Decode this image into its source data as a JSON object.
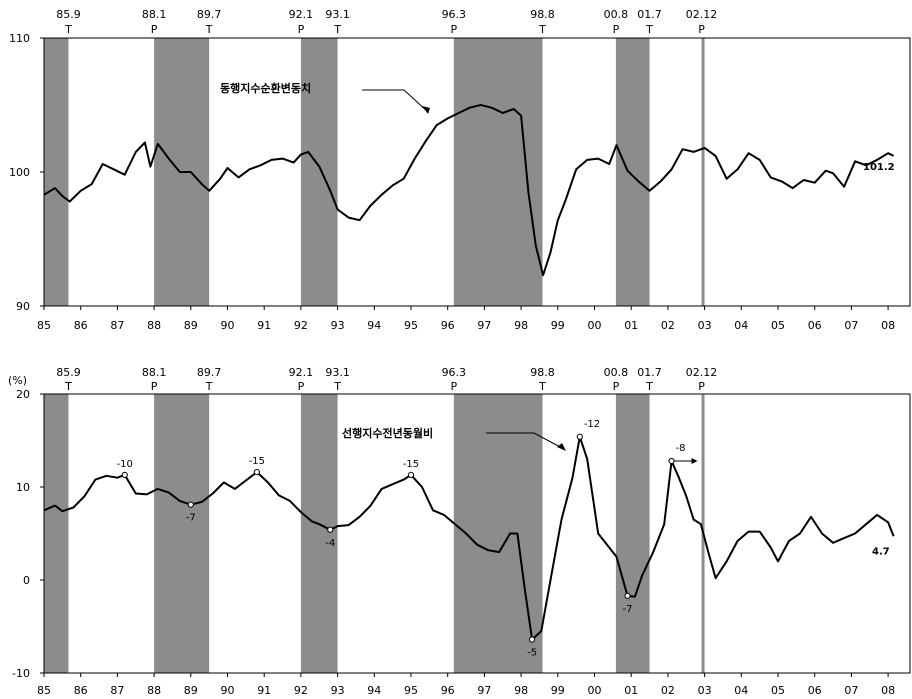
{
  "colors": {
    "shade": "#8c8c8c",
    "line": "#000000",
    "frame": "#000000",
    "marker_fill": "#ffffff"
  },
  "chart_data": [
    {
      "type": "line",
      "title": "",
      "ylim": [
        90,
        110
      ],
      "yticks": [
        "90",
        "100",
        "110"
      ],
      "xlim": [
        1985,
        2008.5
      ],
      "xticks": [
        "85",
        "86",
        "87",
        "88",
        "89",
        "90",
        "91",
        "92",
        "93",
        "94",
        "95",
        "96",
        "97",
        "98",
        "99",
        "00",
        "01",
        "02",
        "03",
        "04",
        "05",
        "06",
        "07",
        "08"
      ],
      "grid": false,
      "turning_points": [
        {
          "date": "85.9",
          "type": "T"
        },
        {
          "date": "88.1",
          "type": "P"
        },
        {
          "date": "89.7",
          "type": "T"
        },
        {
          "date": "92.1",
          "type": "P"
        },
        {
          "date": "93.1",
          "type": "T"
        },
        {
          "date": "96.3",
          "type": "P"
        },
        {
          "date": "98.8",
          "type": "T"
        },
        {
          "date": "00.8",
          "type": "P"
        },
        {
          "date": "01.7",
          "type": "T"
        },
        {
          "date": "02.12",
          "type": "P"
        }
      ],
      "series": [
        {
          "name": "동행지수순환변동치",
          "end_label": "101.2",
          "x": [
            1985.0,
            1985.3,
            1985.5,
            1985.7,
            1986.0,
            1986.3,
            1986.6,
            1986.9,
            1987.2,
            1987.5,
            1987.75,
            1987.9,
            1988.1,
            1988.4,
            1988.7,
            1989.0,
            1989.3,
            1989.5,
            1989.8,
            1990.0,
            1990.3,
            1990.6,
            1990.9,
            1991.2,
            1991.5,
            1991.8,
            1992.0,
            1992.2,
            1992.5,
            1992.8,
            1993.0,
            1993.3,
            1993.6,
            1993.9,
            1994.2,
            1994.5,
            1994.8,
            1995.1,
            1995.4,
            1995.7,
            1996.0,
            1996.3,
            1996.6,
            1996.9,
            1997.2,
            1997.5,
            1997.8,
            1998.0,
            1998.2,
            1998.4,
            1998.6,
            1998.8,
            1999.0,
            1999.2,
            1999.5,
            1999.8,
            2000.1,
            2000.4,
            2000.6,
            2000.9,
            2001.2,
            2001.5,
            2001.8,
            2002.1,
            2002.4,
            2002.7,
            2003.0,
            2003.3,
            2003.6,
            2003.9,
            2004.2,
            2004.5,
            2004.8,
            2005.1,
            2005.4,
            2005.7,
            2006.0,
            2006.3,
            2006.5,
            2006.8,
            2007.1,
            2007.4,
            2007.7,
            2008.0,
            2008.15
          ],
          "y": [
            98.3,
            98.8,
            98.2,
            97.8,
            98.6,
            99.1,
            100.6,
            100.2,
            99.8,
            101.5,
            102.2,
            100.4,
            102.1,
            101.0,
            100.0,
            100.0,
            99.1,
            98.6,
            99.5,
            100.3,
            99.6,
            100.2,
            100.5,
            100.9,
            101.0,
            100.7,
            101.3,
            101.5,
            100.4,
            98.6,
            97.2,
            96.6,
            96.4,
            97.5,
            98.3,
            99.0,
            99.5,
            101.0,
            102.3,
            103.5,
            104.0,
            104.4,
            104.8,
            105.0,
            104.8,
            104.4,
            104.7,
            104.2,
            98.5,
            94.5,
            92.3,
            94.0,
            96.4,
            97.8,
            100.2,
            100.9,
            101.0,
            100.6,
            102.0,
            100.1,
            99.3,
            98.6,
            99.3,
            100.2,
            101.7,
            101.5,
            101.8,
            101.2,
            99.5,
            100.2,
            101.4,
            100.9,
            99.6,
            99.3,
            98.8,
            99.4,
            99.2,
            100.1,
            99.9,
            98.9,
            100.8,
            100.5,
            100.9,
            101.4,
            101.2
          ]
        }
      ]
    },
    {
      "type": "line",
      "title": "",
      "yunit": "(%)",
      "ylim": [
        -10,
        20
      ],
      "yticks": [
        "-10",
        "0",
        "10",
        "20"
      ],
      "xlim": [
        1985,
        2008.5
      ],
      "xticks": [
        "85",
        "86",
        "87",
        "88",
        "89",
        "90",
        "91",
        "92",
        "93",
        "94",
        "95",
        "96",
        "97",
        "98",
        "99",
        "00",
        "01",
        "02",
        "03",
        "04",
        "05",
        "06",
        "07",
        "08"
      ],
      "grid": false,
      "turning_points": [
        {
          "date": "85.9",
          "type": "T"
        },
        {
          "date": "88.1",
          "type": "P"
        },
        {
          "date": "89.7",
          "type": "T"
        },
        {
          "date": "92.1",
          "type": "P"
        },
        {
          "date": "93.1",
          "type": "T"
        },
        {
          "date": "96.3",
          "type": "P"
        },
        {
          "date": "98.8",
          "type": "T"
        },
        {
          "date": "00.8",
          "type": "P"
        },
        {
          "date": "01.7",
          "type": "T"
        },
        {
          "date": "02.12",
          "type": "P"
        }
      ],
      "series": [
        {
          "name": "선행지수전년동월비",
          "end_label": "4.7",
          "x": [
            1985.0,
            1985.3,
            1985.5,
            1985.8,
            1986.1,
            1986.4,
            1986.7,
            1987.0,
            1987.2,
            1987.5,
            1987.8,
            1988.1,
            1988.4,
            1988.7,
            1989.0,
            1989.3,
            1989.6,
            1989.9,
            1990.2,
            1990.5,
            1990.8,
            1991.1,
            1991.4,
            1991.7,
            1992.0,
            1992.3,
            1992.5,
            1992.8,
            1993.0,
            1993.3,
            1993.6,
            1993.9,
            1994.2,
            1994.5,
            1994.8,
            1995.0,
            1995.3,
            1995.6,
            1995.9,
            1996.2,
            1996.5,
            1996.8,
            1997.1,
            1997.4,
            1997.7,
            1997.9,
            1998.1,
            1998.3,
            1998.55,
            1998.8,
            1999.1,
            1999.4,
            1999.6,
            1999.8,
            2000.1,
            2000.4,
            2000.6,
            2000.9,
            2001.1,
            2001.3,
            2001.6,
            2001.9,
            2002.1,
            2002.3,
            2002.5,
            2002.7,
            2002.9,
            2003.1,
            2003.3,
            2003.6,
            2003.9,
            2004.2,
            2004.5,
            2004.8,
            2005.0,
            2005.3,
            2005.6,
            2005.9,
            2006.2,
            2006.5,
            2006.8,
            2007.1,
            2007.4,
            2007.7,
            2008.0,
            2008.15
          ],
          "y": [
            7.5,
            8.0,
            7.4,
            7.8,
            9.0,
            10.8,
            11.2,
            11.0,
            11.3,
            9.3,
            9.2,
            9.8,
            9.4,
            8.5,
            8.1,
            8.4,
            9.3,
            10.5,
            9.8,
            10.7,
            11.6,
            10.5,
            9.1,
            8.5,
            7.3,
            6.3,
            6.0,
            5.4,
            5.8,
            5.9,
            6.8,
            8.0,
            9.8,
            10.3,
            10.8,
            11.3,
            10.0,
            7.5,
            7.0,
            6.0,
            5.0,
            3.8,
            3.2,
            3.0,
            5.0,
            5.0,
            -1.0,
            -6.4,
            -5.5,
            0.0,
            6.5,
            11.0,
            15.4,
            13.0,
            5.0,
            3.5,
            2.5,
            -1.7,
            -1.8,
            0.5,
            3.0,
            6.0,
            12.8,
            11.0,
            9.0,
            6.5,
            6.0,
            3.0,
            0.2,
            2.0,
            4.2,
            5.2,
            5.2,
            3.5,
            2.0,
            4.2,
            5.0,
            6.8,
            5.0,
            4.0,
            4.5,
            5.0,
            6.0,
            7.0,
            6.2,
            4.7
          ]
        }
      ],
      "annotations": [
        {
          "x": 1987.2,
          "y": 11.3,
          "label": "-10",
          "pos": "above"
        },
        {
          "x": 1989.0,
          "y": 8.1,
          "label": "-7",
          "pos": "below"
        },
        {
          "x": 1990.8,
          "y": 11.6,
          "label": "-15",
          "pos": "above"
        },
        {
          "x": 1992.8,
          "y": 5.4,
          "label": "-4",
          "pos": "below"
        },
        {
          "x": 1995.0,
          "y": 11.3,
          "label": "-15",
          "pos": "above"
        },
        {
          "x": 1998.3,
          "y": -6.4,
          "label": "-5",
          "pos": "below"
        },
        {
          "x": 1999.6,
          "y": 15.4,
          "label": "-12",
          "pos": "aboveR"
        },
        {
          "x": 2000.9,
          "y": -1.7,
          "label": "-7",
          "pos": "below"
        },
        {
          "x": 2002.1,
          "y": 12.8,
          "label": "-8",
          "pos": "aboveR"
        }
      ]
    }
  ]
}
